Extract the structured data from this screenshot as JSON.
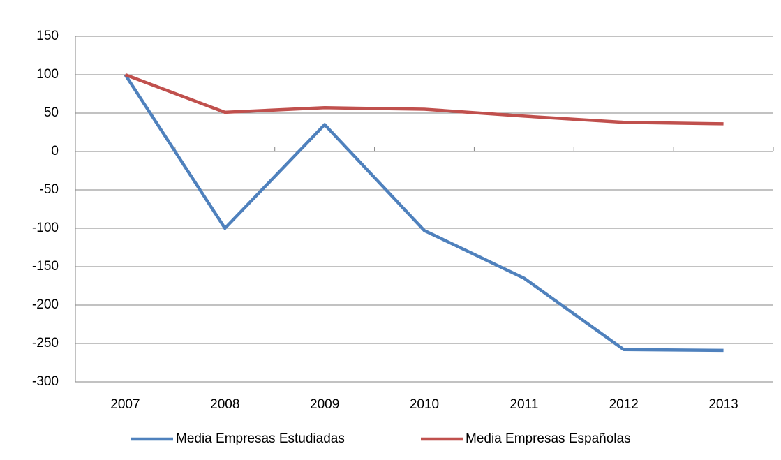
{
  "chart_data": {
    "type": "line",
    "categories": [
      "2007",
      "2008",
      "2009",
      "2010",
      "2011",
      "2012",
      "2013"
    ],
    "series": [
      {
        "name": "Media Empresas Estudiadas",
        "color": "#4f81bd",
        "values": [
          100,
          -100,
          35,
          -103,
          -165,
          -258,
          -259
        ]
      },
      {
        "name": "Media Empresas Españolas",
        "color": "#c0504d",
        "values": [
          100,
          51,
          57,
          55,
          46,
          38,
          36
        ]
      }
    ],
    "ylim": [
      -300,
      150
    ],
    "yticks": [
      -300,
      -250,
      -200,
      -150,
      -100,
      -50,
      0,
      50,
      100,
      150
    ],
    "grid": true,
    "legend": "bottom"
  }
}
